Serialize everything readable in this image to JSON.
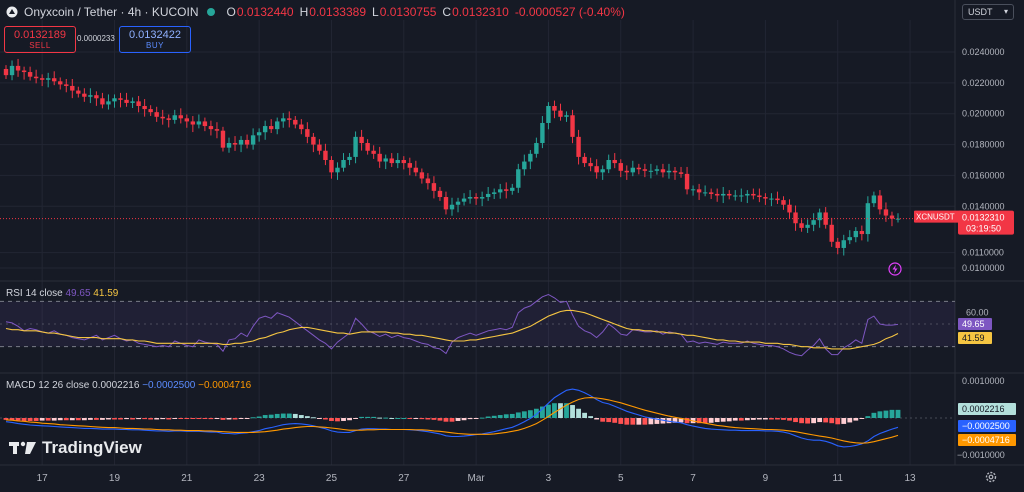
{
  "header": {
    "symbol": "Onyxcoin / Tether · 4h · KUCOIN",
    "o_label": "O",
    "o": "0.0132440",
    "h_label": "H",
    "h": "0.0133389",
    "l_label": "L",
    "l": "0.0130755",
    "c_label": "C",
    "c": "0.0132310",
    "change": "-0.0000527 (-0.40%)"
  },
  "trade": {
    "sell_price": "0.0132189",
    "sell_label": "SELL",
    "buy_price": "0.0132422",
    "buy_label": "BUY",
    "spread": "0.0000233"
  },
  "currency_select": "USDT",
  "colors": {
    "up": "#26a69a",
    "down": "#f23645",
    "background": "#161a25",
    "rsi": "#7e57c2",
    "rsi_ma": "#f5c542",
    "macd": "#2962ff",
    "signal": "#ff9800"
  },
  "rsi": {
    "title": "RSI 14 close",
    "value": "49.65",
    "ma": "41.59",
    "axis_label": "60.00"
  },
  "macd": {
    "title": "MACD 12 26 close",
    "hist": "0.0002216",
    "macd": "−0.0002500",
    "signal": "−0.0004716",
    "axis_top": "0.0010000",
    "axis_bottom": "−0.0010000"
  },
  "price_tag": {
    "symbol": "XCNUSDT",
    "price": "0.0132310",
    "countdown": "03:19:50"
  },
  "brand": "TradingView",
  "chart_data": {
    "type": "candlestick",
    "timeframe": "4h",
    "y_ticks": [
      "0.0240000",
      "0.0220000",
      "0.0200000",
      "0.0180000",
      "0.0160000",
      "0.0140000",
      "0.0110000",
      "0.0100000"
    ],
    "x_ticks": [
      {
        "label": "17",
        "i": 6
      },
      {
        "label": "19",
        "i": 18
      },
      {
        "label": "21",
        "i": 30
      },
      {
        "label": "23",
        "i": 42
      },
      {
        "label": "25",
        "i": 54
      },
      {
        "label": "27",
        "i": 66
      },
      {
        "label": "Mar",
        "i": 78
      },
      {
        "label": "3",
        "i": 90
      },
      {
        "label": "5",
        "i": 102
      },
      {
        "label": "7",
        "i": 114
      },
      {
        "label": "9",
        "i": 126
      },
      {
        "label": "11",
        "i": 138
      },
      {
        "label": "13",
        "i": 150
      }
    ],
    "closes": [
      0.0225,
      0.0231,
      0.0228,
      0.0227,
      0.0224,
      0.0223,
      0.0222,
      0.0223,
      0.0221,
      0.0219,
      0.0218,
      0.0215,
      0.0213,
      0.0211,
      0.0212,
      0.021,
      0.0206,
      0.0208,
      0.021,
      0.0209,
      0.0207,
      0.0208,
      0.0205,
      0.0203,
      0.0201,
      0.0198,
      0.0197,
      0.0196,
      0.0199,
      0.0197,
      0.0195,
      0.0193,
      0.0195,
      0.0192,
      0.019,
      0.0189,
      0.0178,
      0.0181,
      0.018,
      0.0183,
      0.018,
      0.0186,
      0.0188,
      0.0192,
      0.019,
      0.0195,
      0.0197,
      0.0196,
      0.0193,
      0.019,
      0.0185,
      0.018,
      0.0176,
      0.017,
      0.0162,
      0.0165,
      0.017,
      0.0172,
      0.0185,
      0.0181,
      0.0176,
      0.0174,
      0.0169,
      0.0171,
      0.0168,
      0.017,
      0.0168,
      0.0165,
      0.0162,
      0.0158,
      0.0155,
      0.015,
      0.0146,
      0.0138,
      0.0141,
      0.0143,
      0.0145,
      0.0146,
      0.0145,
      0.0146,
      0.0148,
      0.0149,
      0.0151,
      0.015,
      0.0152,
      0.0164,
      0.0169,
      0.0174,
      0.0181,
      0.0194,
      0.0205,
      0.0202,
      0.0198,
      0.0199,
      0.0185,
      0.0172,
      0.0168,
      0.0166,
      0.0162,
      0.0164,
      0.017,
      0.0168,
      0.0163,
      0.0162,
      0.0165,
      0.0164,
      0.0163,
      0.0163,
      0.0164,
      0.0162,
      0.0163,
      0.0162,
      0.0161,
      0.0151,
      0.0151,
      0.0149,
      0.0149,
      0.0148,
      0.0147,
      0.0148,
      0.0147,
      0.0147,
      0.0147,
      0.0148,
      0.0147,
      0.0146,
      0.0145,
      0.0145,
      0.0144,
      0.0141,
      0.0136,
      0.0129,
      0.0126,
      0.0128,
      0.0131,
      0.0136,
      0.0128,
      0.0117,
      0.0113,
      0.0118,
      0.012,
      0.0124,
      0.0122,
      0.0142,
      0.0147,
      0.0138,
      0.0134,
      0.0132,
      0.0132
    ],
    "rsi_values": [
      52,
      51,
      48,
      44,
      46,
      45,
      43,
      42,
      44,
      41,
      40,
      38,
      37,
      36,
      38,
      40,
      36,
      38,
      40,
      37,
      35,
      36,
      33,
      32,
      31,
      30,
      31,
      30,
      35,
      33,
      31,
      30,
      36,
      34,
      33,
      32,
      26,
      36,
      37,
      42,
      39,
      48,
      55,
      57,
      55,
      60,
      58,
      56,
      52,
      48,
      44,
      40,
      36,
      33,
      28,
      34,
      38,
      42,
      55,
      50,
      44,
      42,
      39,
      41,
      38,
      40,
      38,
      37,
      35,
      33,
      32,
      29,
      28,
      24,
      34,
      38,
      40,
      42,
      40,
      42,
      44,
      45,
      46,
      45,
      47,
      60,
      64,
      66,
      70,
      74,
      76,
      73,
      69,
      70,
      58,
      48,
      44,
      42,
      38,
      43,
      50,
      46,
      41,
      40,
      45,
      44,
      43,
      43,
      44,
      41,
      43,
      42,
      41,
      34,
      35,
      33,
      34,
      33,
      32,
      34,
      33,
      33,
      33,
      35,
      33,
      32,
      31,
      31,
      30,
      28,
      25,
      23,
      22,
      27,
      31,
      37,
      28,
      23,
      23,
      29,
      32,
      36,
      33,
      54,
      57,
      50,
      49,
      49,
      49.65
    ],
    "rsi_ma_values": [
      46,
      45,
      45,
      44,
      44,
      44,
      43,
      42,
      42,
      41,
      40,
      39,
      38,
      38,
      38,
      38,
      37,
      37,
      37,
      37,
      36,
      36,
      35,
      35,
      34,
      33,
      33,
      33,
      33,
      33,
      33,
      33,
      33,
      33,
      33,
      33,
      32,
      32,
      33,
      33,
      34,
      35,
      37,
      38,
      40,
      42,
      43,
      45,
      46,
      47,
      47,
      46,
      45,
      44,
      43,
      42,
      42,
      41,
      42,
      43,
      43,
      43,
      43,
      43,
      42,
      42,
      41,
      41,
      40,
      40,
      39,
      38,
      37,
      36,
      35,
      35,
      35,
      36,
      36,
      37,
      38,
      39,
      40,
      41,
      42,
      44,
      46,
      48,
      51,
      54,
      57,
      59,
      61,
      62,
      62,
      61,
      60,
      58,
      56,
      54,
      52,
      50,
      48,
      46,
      45,
      45,
      44,
      44,
      43,
      43,
      42,
      42,
      41,
      40,
      40,
      39,
      38,
      37,
      36,
      36,
      35,
      35,
      34,
      34,
      34,
      34,
      33,
      33,
      33,
      32,
      32,
      31,
      30,
      30,
      29,
      29,
      29,
      28,
      28,
      28,
      28,
      29,
      30,
      31,
      32,
      34,
      37,
      39,
      41.59
    ],
    "macd_values": [
      -0.0001,
      -0.00012,
      -0.00015,
      -0.00017,
      -0.00019,
      -0.0002,
      -0.00021,
      -0.00022,
      -0.00023,
      -0.00024,
      -0.00025,
      -0.00026,
      -0.00027,
      -0.00028,
      -0.00028,
      -0.00029,
      -0.0003,
      -0.0003,
      -0.0003,
      -0.00031,
      -0.00031,
      -0.00032,
      -0.00032,
      -0.00033,
      -0.00034,
      -0.00035,
      -0.00035,
      -0.00036,
      -0.00035,
      -0.00035,
      -0.00036,
      -0.00036,
      -0.00036,
      -0.00037,
      -0.00038,
      -0.00038,
      -0.00042,
      -0.00042,
      -0.00043,
      -0.00041,
      -0.0004,
      -0.00037,
      -0.00034,
      -0.00029,
      -0.00026,
      -0.00022,
      -0.00018,
      -0.00016,
      -0.00015,
      -0.00016,
      -0.00018,
      -0.00021,
      -0.00025,
      -0.00029,
      -0.00035,
      -0.00038,
      -0.00039,
      -0.00039,
      -0.00034,
      -0.0003,
      -0.00029,
      -0.00029,
      -0.0003,
      -0.0003,
      -0.00031,
      -0.00031,
      -0.00031,
      -0.00032,
      -0.00033,
      -0.00035,
      -0.00037,
      -0.0004,
      -0.00043,
      -0.00048,
      -0.0005,
      -0.0005,
      -0.00049,
      -0.00047,
      -0.00045,
      -0.00043,
      -0.0004,
      -0.00037,
      -0.00033,
      -0.00029,
      -0.00025,
      -0.00018,
      -0.0001,
      -1e-05,
      0.0001,
      0.00025,
      0.0004,
      0.00055,
      0.00065,
      0.00075,
      0.00078,
      0.00075,
      0.00068,
      0.0006,
      0.0005,
      0.00042,
      0.00038,
      0.00032,
      0.00025,
      0.00018,
      0.00013,
      8e-05,
      3e-05,
      0.0,
      -3e-05,
      -6e-05,
      -9e-05,
      -0.00011,
      -0.00013,
      -0.00018,
      -0.00022,
      -0.00025,
      -0.00028,
      -0.0003,
      -0.00031,
      -0.00032,
      -0.00033,
      -0.00033,
      -0.00034,
      -0.00034,
      -0.00034,
      -0.00034,
      -0.00035,
      -0.00035,
      -0.00036,
      -0.00038,
      -0.00042,
      -0.00048,
      -0.00054,
      -0.00058,
      -0.0006,
      -0.0006,
      -0.00063,
      -0.00068,
      -0.00075,
      -0.00078,
      -0.00077,
      -0.00074,
      -0.0007,
      -0.00062,
      -0.0005,
      -0.00042,
      -0.00036,
      -0.0003,
      -0.00025
    ],
    "signal_values": [
      -5e-05,
      -6e-05,
      -8e-05,
      -9e-05,
      -0.00011,
      -0.00012,
      -0.00014,
      -0.00015,
      -0.00016,
      -0.00018,
      -0.00019,
      -0.0002,
      -0.00021,
      -0.00022,
      -0.00023,
      -0.00024,
      -0.00025,
      -0.00026,
      -0.00026,
      -0.00027,
      -0.00028,
      -0.00028,
      -0.00029,
      -0.0003,
      -0.0003,
      -0.00031,
      -0.00032,
      -0.00032,
      -0.00033,
      -0.00033,
      -0.00034,
      -0.00034,
      -0.00034,
      -0.00035,
      -0.00035,
      -0.00036,
      -0.00037,
      -0.00038,
      -0.00039,
      -0.00039,
      -0.00039,
      -0.00039,
      -0.00038,
      -0.00037,
      -0.00035,
      -0.00033,
      -0.0003,
      -0.00028,
      -0.00026,
      -0.00024,
      -0.00023,
      -0.00023,
      -0.00024,
      -0.00025,
      -0.00027,
      -0.00029,
      -0.00031,
      -0.00033,
      -0.00033,
      -0.00033,
      -0.00032,
      -0.00032,
      -0.00031,
      -0.00031,
      -0.00031,
      -0.00031,
      -0.00031,
      -0.00031,
      -0.00032,
      -0.00032,
      -0.00033,
      -0.00035,
      -0.00036,
      -0.00038,
      -0.0004,
      -0.00042,
      -0.00043,
      -0.00044,
      -0.00044,
      -0.00044,
      -0.00044,
      -0.00043,
      -0.00041,
      -0.00039,
      -0.00036,
      -0.00033,
      -0.00028,
      -0.00022,
      -0.00015,
      -6e-05,
      4e-05,
      0.00015,
      0.00025,
      0.00035,
      0.00043,
      0.0005,
      0.00054,
      0.00055,
      0.00054,
      0.00052,
      0.00049,
      0.00045,
      0.00041,
      0.00036,
      0.00031,
      0.00026,
      0.00021,
      0.00017,
      0.00013,
      9e-05,
      5e-05,
      2e-05,
      -1e-05,
      -4e-05,
      -8e-05,
      -0.00011,
      -0.00014,
      -0.00017,
      -0.0002,
      -0.00022,
      -0.00024,
      -0.00026,
      -0.00027,
      -0.00028,
      -0.00029,
      -0.0003,
      -0.00031,
      -0.00031,
      -0.00032,
      -0.00033,
      -0.00035,
      -0.00037,
      -0.0004,
      -0.00043,
      -0.00046,
      -0.00049,
      -0.00051,
      -0.00054,
      -0.00058,
      -0.00062,
      -0.00065,
      -0.00067,
      -0.00068,
      -0.00067,
      -0.00064,
      -0.0006,
      -0.00056,
      -0.00052,
      -0.00047
    ]
  }
}
